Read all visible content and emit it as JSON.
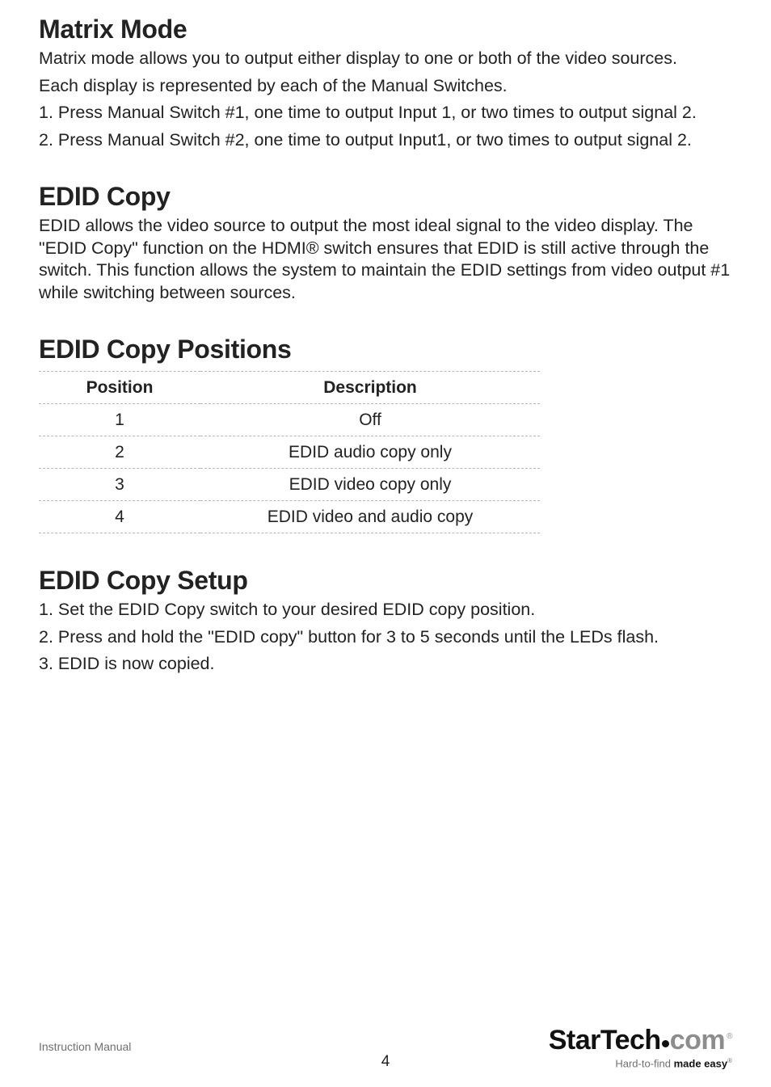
{
  "matrix": {
    "heading": "Matrix Mode",
    "p1": "Matrix mode allows you to output either display to one or both of the video sources.",
    "p2": "Each display is represented by each of the Manual Switches.",
    "li1": "1.  Press Manual Switch #1, one time to output Input 1, or two times to output signal 2.",
    "li2": "2.  Press Manual Switch #2, one time to output Input1, or two times to output signal 2."
  },
  "edid_copy": {
    "heading": "EDID Copy",
    "p1": "EDID allows the video source to output the most ideal signal to the video display.  The \"EDID Copy\" function on the HDMI® switch ensures that EDID is still active through the switch.  This function allows the system to maintain the EDID settings from video output #1 while switching between sources."
  },
  "edid_positions": {
    "heading": "EDID Copy Positions",
    "table": {
      "col1": "Position",
      "col2": "Description",
      "rows": [
        {
          "pos": "1",
          "desc": "Off"
        },
        {
          "pos": "2",
          "desc": "EDID audio copy only"
        },
        {
          "pos": "3",
          "desc": "EDID video copy only"
        },
        {
          "pos": "4",
          "desc": "EDID video and audio copy"
        }
      ]
    }
  },
  "edid_setup": {
    "heading": "EDID Copy Setup",
    "li1": "1.  Set the EDID Copy switch to your desired EDID copy position.",
    "li2": "2.  Press and hold the \"EDID copy\" button for 3 to 5 seconds until the LEDs flash.",
    "li3": "3.  EDID is now copied."
  },
  "footer": {
    "manual": "Instruction Manual",
    "page": "4",
    "brand_main": "StarTech",
    "brand_com": "com",
    "tagline_prefix": "Hard-to-find ",
    "tagline_bold": "made easy"
  }
}
